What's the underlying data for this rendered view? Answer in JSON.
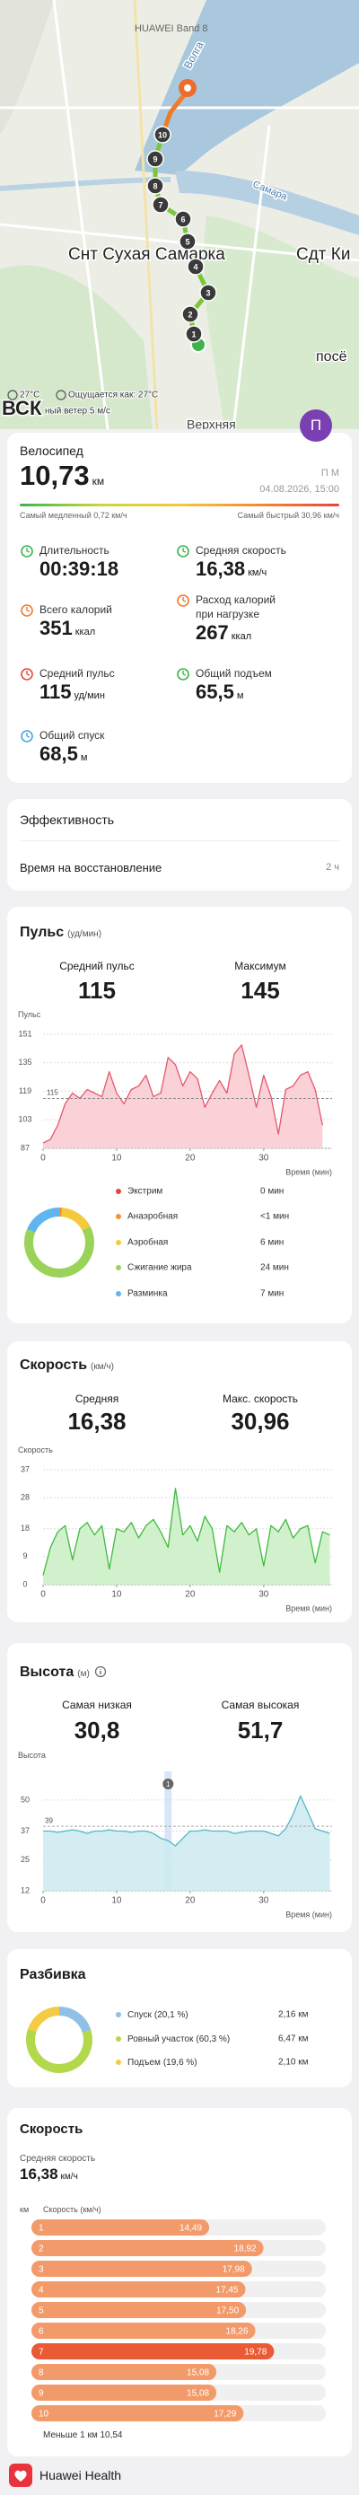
{
  "map": {
    "device": "HUAWEI Band 8",
    "labels": [
      "Волга",
      "Самара",
      "Снт Сухая Самарка",
      "Сдт Ки",
      "ВСК",
      "посё",
      "Верхняя"
    ],
    "markers": [
      "1",
      "2",
      "3",
      "4",
      "5",
      "6",
      "7",
      "8",
      "9",
      "10"
    ],
    "weather": {
      "temp": "27°C",
      "feels": "Ощущается как: 27°C",
      "wind": "ный ветер 5 м/с"
    },
    "avatar": "П"
  },
  "workout": {
    "type": "Велосипед",
    "distance": "10,73",
    "distance_unit": "км",
    "user": "П М",
    "date": "04.08.2026, 15:00",
    "slowest": "Самый медленный 0,72 км/ч",
    "fastest": "Самый быстрый 30,96 км/ч",
    "stats": [
      {
        "label": "Длительность",
        "value": "00:39:18"
      },
      {
        "label": "Средняя скорость",
        "value": "16,38",
        "unit": "км/ч"
      },
      {
        "label": "Всего калорий",
        "value": "351",
        "unit": "ккал"
      },
      {
        "label": "Расход калорий при нагрузке",
        "value": "267",
        "unit": "ккал"
      },
      {
        "label": "Средний пульс",
        "value": "115",
        "unit": "уд/мин"
      },
      {
        "label": "Общий подъем",
        "value": "65,5",
        "unit": "м"
      },
      {
        "label": "Общий спуск",
        "value": "68,5",
        "unit": "м"
      }
    ]
  },
  "efficiency": {
    "title": "Эффективность",
    "recovery_label": "Время на восстановление",
    "recovery_value": "2 ч"
  },
  "chart_data": [
    {
      "type": "line",
      "title": "Пульс",
      "unit": "(уд/мин)",
      "stats": [
        {
          "label": "Средний пульс",
          "value": "115"
        },
        {
          "label": "Максимум",
          "value": "145"
        }
      ],
      "y_label": "Пульс",
      "x_label": "Время (мин)",
      "x": [
        0,
        1,
        2,
        3,
        4,
        5,
        6,
        7,
        8,
        9,
        10,
        11,
        12,
        13,
        14,
        15,
        16,
        17,
        18,
        19,
        20,
        21,
        22,
        23,
        24,
        25,
        26,
        27,
        28,
        29,
        30,
        31,
        32,
        33,
        34,
        35,
        36,
        37,
        38
      ],
      "values": [
        90,
        92,
        100,
        112,
        118,
        115,
        120,
        118,
        116,
        130,
        118,
        112,
        120,
        122,
        128,
        116,
        118,
        138,
        134,
        122,
        130,
        126,
        110,
        118,
        125,
        118,
        140,
        145,
        128,
        110,
        128,
        116,
        95,
        120,
        122,
        128,
        130,
        120,
        100
      ],
      "xlim": [
        0,
        39.3
      ],
      "xticks": [
        0,
        10,
        20,
        30
      ],
      "ylim": [
        87,
        151
      ],
      "yticks": [
        87,
        103,
        119,
        135,
        151
      ],
      "average": 115,
      "color": "#e8566c",
      "fill": "#f8c9d0"
    },
    {
      "type": "line",
      "title": "Скорость",
      "unit": "(км/ч)",
      "stats": [
        {
          "label": "Средняя",
          "value": "16,38"
        },
        {
          "label": "Макс. скорость",
          "value": "30,96"
        }
      ],
      "y_label": "Скорость",
      "x_label": "Время (мин)",
      "x": [
        0,
        1,
        2,
        3,
        4,
        5,
        6,
        7,
        8,
        9,
        10,
        11,
        12,
        13,
        14,
        15,
        16,
        17,
        18,
        19,
        20,
        21,
        22,
        23,
        24,
        25,
        26,
        27,
        28,
        29,
        30,
        31,
        32,
        33,
        34,
        35,
        36,
        37,
        38,
        39
      ],
      "values": [
        3,
        12,
        17,
        19,
        8,
        18,
        20,
        16,
        19,
        5,
        18,
        17,
        20,
        15,
        19,
        21,
        17,
        12,
        30.96,
        16,
        19,
        14,
        22,
        18,
        4,
        19,
        17,
        20,
        16,
        18,
        6,
        19,
        17,
        21,
        15,
        18,
        19,
        7,
        17,
        16
      ],
      "xlim": [
        0,
        39.3
      ],
      "xticks": [
        0,
        10,
        20,
        30
      ],
      "ylim": [
        0,
        37
      ],
      "yticks": [
        0,
        9,
        18,
        28,
        37
      ],
      "color": "#3fba3f",
      "fill": "#c9eec3"
    },
    {
      "type": "line",
      "title": "Высота",
      "unit": "(м)",
      "stats": [
        {
          "label": "Самая низкая",
          "value": "30,8"
        },
        {
          "label": "Самая высокая",
          "value": "51,7"
        }
      ],
      "y_label": "Высота",
      "x_label": "Время (мин)",
      "x": [
        0,
        1,
        2,
        3,
        4,
        5,
        6,
        7,
        8,
        9,
        10,
        11,
        12,
        13,
        14,
        15,
        16,
        17,
        18,
        19,
        20,
        21,
        22,
        23,
        24,
        25,
        26,
        27,
        28,
        29,
        30,
        31,
        32,
        33,
        34,
        35,
        36,
        37,
        38,
        39
      ],
      "values": [
        37,
        37,
        36.5,
        37,
        37.5,
        37,
        36,
        37,
        37,
        37.5,
        37,
        37,
        36.5,
        37,
        37,
        36,
        34,
        33,
        30.8,
        34,
        37,
        37,
        37.5,
        37,
        37,
        37,
        36,
        36.5,
        37,
        37,
        37,
        36,
        35,
        38,
        44,
        51.7,
        45,
        38,
        37,
        36
      ],
      "xlim": [
        0,
        39.3
      ],
      "xticks": [
        0,
        10,
        20,
        30
      ],
      "ylim": [
        12,
        62
      ],
      "yticks": [
        12,
        25,
        37,
        50
      ],
      "reference": 39,
      "markers": [
        {
          "x": 17,
          "label": "1"
        }
      ],
      "color": "#55b7c9",
      "fill": "#cdeaf0"
    },
    {
      "type": "pie",
      "title": null,
      "categories": [
        "Экстрим",
        "Анаэробная",
        "Аэробная",
        "Сжигание жира",
        "Разминка"
      ],
      "values": [
        0,
        0.5,
        6,
        24,
        7
      ],
      "value_labels": [
        "0 мин",
        "<1 мин",
        "6 мин",
        "24 мин",
        "7 мин"
      ],
      "colors": [
        "#e8453c",
        "#f59331",
        "#f5c93c",
        "#9bd35a",
        "#5fb5ef"
      ]
    },
    {
      "type": "pie",
      "title": "Разбивка",
      "categories": [
        "Спуск",
        "Ровный участок",
        "Подъем"
      ],
      "values": [
        20.1,
        60.3,
        19.6
      ],
      "value_labels": [
        "(20,1 %)",
        "(60,3 %)",
        "(19,6 %)"
      ],
      "distances": [
        "2,16 км",
        "6,47 км",
        "2,10 км"
      ],
      "colors": [
        "#8fc0e6",
        "#b3d84c",
        "#f5cb45"
      ]
    },
    {
      "type": "bar",
      "title": "Скорость",
      "subtitle": "Средняя скорость",
      "average": "16,38",
      "average_unit": "км/ч",
      "headers": [
        "км",
        "Скорость (км/ч)"
      ],
      "categories": [
        "1",
        "2",
        "3",
        "4",
        "5",
        "6",
        "7",
        "8",
        "9",
        "10"
      ],
      "values": [
        14.49,
        18.92,
        17.98,
        17.45,
        17.5,
        18.26,
        19.78,
        15.08,
        15.08,
        17.29
      ],
      "value_labels": [
        "14,49",
        "18,92",
        "17,98",
        "17,45",
        "17,50",
        "18,26",
        "19,78",
        "15,08",
        "15,08",
        "17,29"
      ],
      "xlim": [
        0,
        24
      ],
      "color": "#f39a6a",
      "max_color": "#ea5a34",
      "remainder": "Меньше 1 км 10,54"
    }
  ],
  "footer": "Huawei Health"
}
